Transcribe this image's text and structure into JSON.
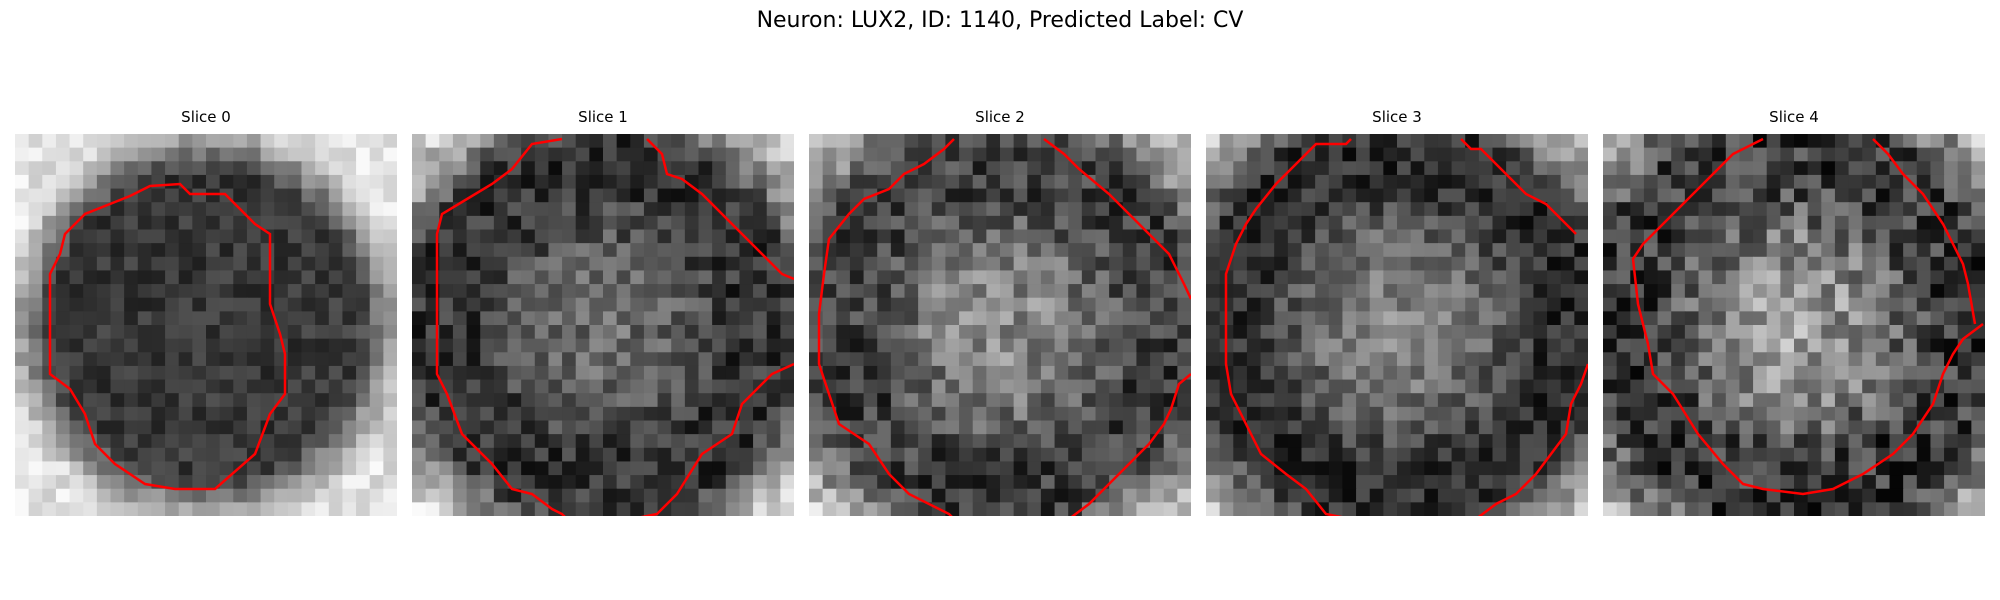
{
  "figure": {
    "title": "Neuron: LUX2, ID: 1140, Predicted Label: CV"
  },
  "panels": [
    {
      "title": "Slice 0"
    },
    {
      "title": "Slice 1"
    },
    {
      "title": "Slice 2"
    },
    {
      "title": "Slice 3"
    },
    {
      "title": "Slice 4"
    }
  ],
  "colors": {
    "contour": "#ff0000",
    "background": "#ffffff"
  }
}
